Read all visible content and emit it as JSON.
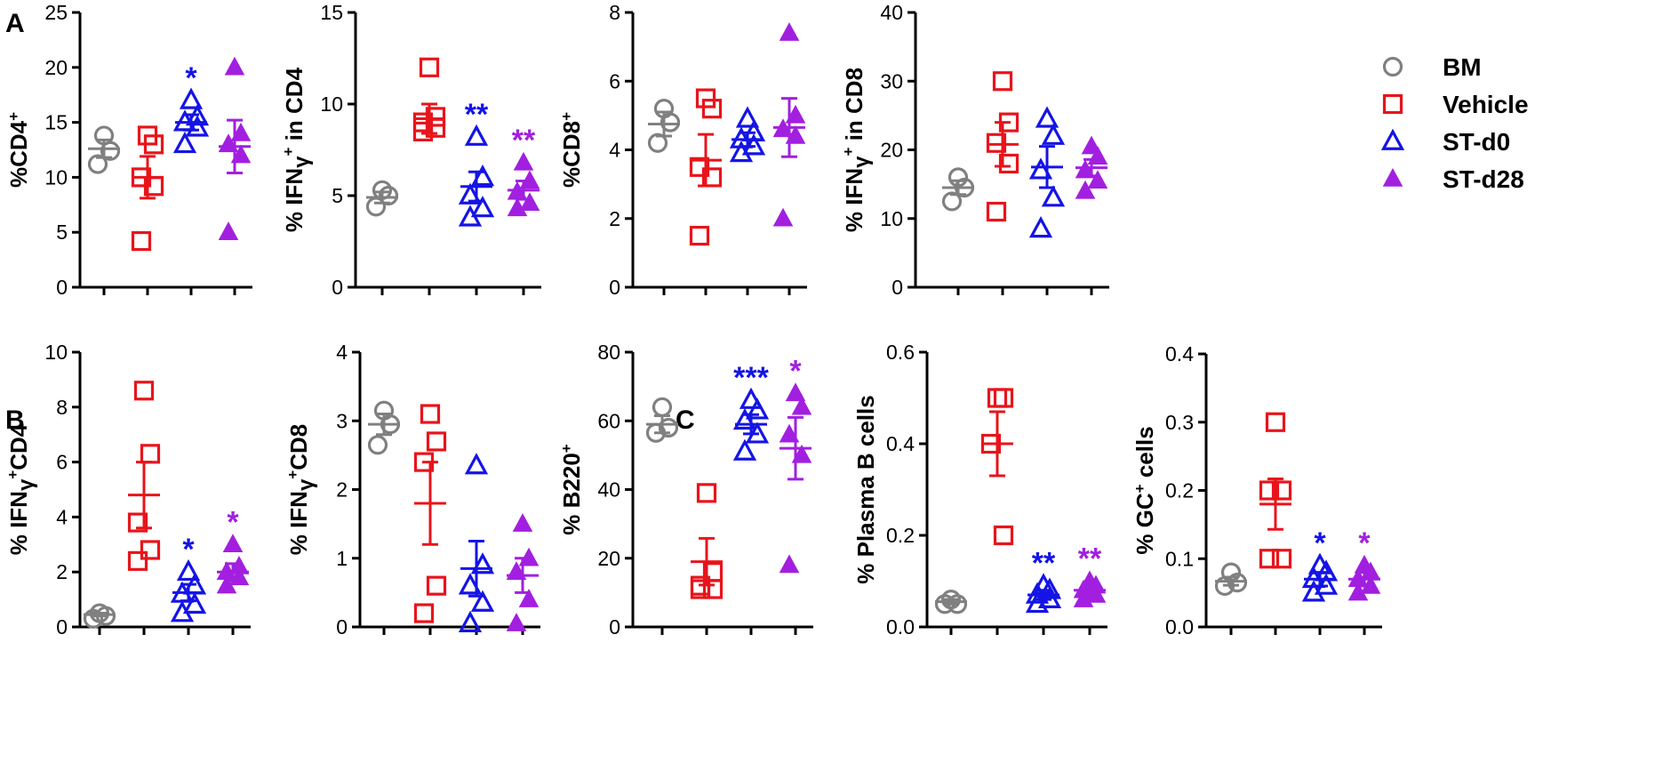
{
  "colors": {
    "BM": "#808080",
    "Vehicle": "#e8141b",
    "ST-d0": "#1414e6",
    "ST-d28": "#a21fe0",
    "axis": "#000000"
  },
  "panel_labels": [
    "A",
    "B",
    "C"
  ],
  "legend": {
    "items": [
      {
        "label": "BM",
        "group": "BM",
        "marker": "circle-open"
      },
      {
        "label": "Vehicle",
        "group": "Vehicle",
        "marker": "square-open"
      },
      {
        "label": "ST-d0",
        "group": "ST-d0",
        "marker": "triangle-open"
      },
      {
        "label": "ST-d28",
        "group": "ST-d28",
        "marker": "triangle-filled"
      }
    ]
  },
  "chart_data": [
    {
      "type": "scatter",
      "ylabel": "%CD4+",
      "ylim": [
        0,
        25
      ],
      "yticks": [
        "0",
        "5",
        "10",
        "15",
        "20",
        "25"
      ],
      "groups": [
        "BM",
        "Vehicle",
        "ST-d0",
        "ST-d28"
      ],
      "series": [
        {
          "name": "BM",
          "values": [
            13.8,
            12.4,
            11.2
          ],
          "mean": 12.6,
          "sem": 0.8,
          "sig": ""
        },
        {
          "name": "Vehicle",
          "values": [
            13.8,
            13.0,
            10.0,
            9.2,
            4.2
          ],
          "mean": 10.0,
          "sem": 1.9,
          "sig": ""
        },
        {
          "name": "ST-d0",
          "values": [
            17.0,
            15.5,
            15.0,
            14.5,
            13.0
          ],
          "mean": 15.0,
          "sem": 0.7,
          "sig": "*"
        },
        {
          "name": "ST-d28",
          "values": [
            20.0,
            14.0,
            13.0,
            12.0,
            5.0
          ],
          "mean": 12.8,
          "sem": 2.4,
          "sig": ""
        }
      ]
    },
    {
      "type": "scatter",
      "ylabel": "% IFNγ+ in CD4",
      "ylim": [
        0,
        15
      ],
      "yticks": [
        "0",
        "5",
        "10",
        "15"
      ],
      "groups": [
        "BM",
        "Vehicle",
        "ST-d0",
        "ST-d28"
      ],
      "series": [
        {
          "name": "BM",
          "values": [
            5.3,
            5.0,
            4.4
          ],
          "mean": 4.9,
          "sem": 0.3,
          "sig": ""
        },
        {
          "name": "Vehicle",
          "values": [
            12.0,
            9.3,
            9.0,
            8.7,
            8.5
          ],
          "mean": 9.2,
          "sem": 0.8,
          "sig": ""
        },
        {
          "name": "ST-d0",
          "values": [
            8.2,
            6.0,
            5.0,
            4.3,
            3.8
          ],
          "mean": 5.5,
          "sem": 0.8,
          "sig": "**"
        },
        {
          "name": "ST-d28",
          "values": [
            6.8,
            5.8,
            5.2,
            4.6,
            4.3
          ],
          "mean": 5.3,
          "sem": 0.5,
          "sig": "**"
        }
      ]
    },
    {
      "type": "scatter",
      "ylabel": "%CD8+",
      "ylim": [
        0,
        8
      ],
      "yticks": [
        "0",
        "2",
        "4",
        "6",
        "8"
      ],
      "groups": [
        "BM",
        "Vehicle",
        "ST-d0",
        "ST-d28"
      ],
      "series": [
        {
          "name": "BM",
          "values": [
            5.2,
            4.8,
            4.2
          ],
          "mean": 4.75,
          "sem": 0.35,
          "sig": ""
        },
        {
          "name": "Vehicle",
          "values": [
            5.5,
            5.2,
            3.5,
            3.2,
            1.5
          ],
          "mean": 3.7,
          "sem": 0.75,
          "sig": ""
        },
        {
          "name": "ST-d0",
          "values": [
            4.9,
            4.5,
            4.3,
            4.1,
            3.9
          ],
          "mean": 4.3,
          "sem": 0.2,
          "sig": ""
        },
        {
          "name": "ST-d28",
          "values": [
            7.4,
            5.0,
            4.6,
            4.4,
            2.0
          ],
          "mean": 4.65,
          "sem": 0.85,
          "sig": ""
        }
      ]
    },
    {
      "type": "scatter",
      "ylabel": "% IFNγ+ in CD8",
      "ylim": [
        0,
        40
      ],
      "yticks": [
        "0",
        "10",
        "20",
        "30",
        "40"
      ],
      "groups": [
        "BM",
        "Vehicle",
        "ST-d0",
        "ST-d28"
      ],
      "series": [
        {
          "name": "BM",
          "values": [
            16.0,
            14.5,
            12.5
          ],
          "mean": 14.5,
          "sem": 1.0,
          "sig": ""
        },
        {
          "name": "Vehicle",
          "values": [
            30.0,
            24.0,
            21.0,
            18.0,
            11.0
          ],
          "mean": 20.8,
          "sem": 3.2,
          "sig": ""
        },
        {
          "name": "ST-d0",
          "values": [
            24.5,
            22.0,
            17.0,
            13.0,
            8.5
          ],
          "mean": 17.5,
          "sem": 3.0,
          "sig": ""
        },
        {
          "name": "ST-d28",
          "values": [
            20.5,
            19.0,
            17.0,
            15.5,
            14.0
          ],
          "mean": 17.4,
          "sem": 1.2,
          "sig": ""
        }
      ]
    },
    {
      "type": "scatter",
      "ylabel": "% IFNγ+CD4",
      "ylim": [
        0,
        10
      ],
      "yticks": [
        "0",
        "2",
        "4",
        "6",
        "8",
        "10"
      ],
      "groups": [
        "BM",
        "Vehicle",
        "ST-d0",
        "ST-d28"
      ],
      "series": [
        {
          "name": "BM",
          "values": [
            0.5,
            0.4,
            0.3
          ],
          "mean": 0.45,
          "sem": 0.05,
          "sig": ""
        },
        {
          "name": "Vehicle",
          "values": [
            8.6,
            6.3,
            3.8,
            2.8,
            2.4
          ],
          "mean": 4.8,
          "sem": 1.2,
          "sig": ""
        },
        {
          "name": "ST-d0",
          "values": [
            2.0,
            1.5,
            1.2,
            0.8,
            0.5
          ],
          "mean": 1.25,
          "sem": 0.3,
          "sig": "*"
        },
        {
          "name": "ST-d28",
          "values": [
            3.0,
            2.2,
            2.0,
            1.8,
            1.5
          ],
          "mean": 2.0,
          "sem": 0.3,
          "sig": "*"
        }
      ]
    },
    {
      "type": "scatter",
      "ylabel": "% IFNγ+CD8",
      "ylim": [
        0,
        4
      ],
      "yticks": [
        "0",
        "1",
        "2",
        "3",
        "4"
      ],
      "groups": [
        "BM",
        "Vehicle",
        "ST-d0",
        "ST-d28"
      ],
      "series": [
        {
          "name": "BM",
          "values": [
            3.15,
            2.95,
            2.65
          ],
          "mean": 2.95,
          "sem": 0.15,
          "sig": ""
        },
        {
          "name": "Vehicle",
          "values": [
            3.1,
            2.7,
            2.4,
            0.6,
            0.2
          ],
          "mean": 1.8,
          "sem": 0.6,
          "sig": ""
        },
        {
          "name": "ST-d0",
          "values": [
            2.35,
            0.9,
            0.6,
            0.35,
            0.05
          ],
          "mean": 0.85,
          "sem": 0.4,
          "sig": ""
        },
        {
          "name": "ST-d28",
          "values": [
            1.5,
            1.0,
            0.8,
            0.4,
            0.05
          ],
          "mean": 0.75,
          "sem": 0.25,
          "sig": ""
        }
      ]
    },
    {
      "type": "scatter",
      "ylabel": "% B220+",
      "ylim": [
        0,
        80
      ],
      "yticks": [
        "0",
        "20",
        "40",
        "60",
        "80"
      ],
      "groups": [
        "BM",
        "Vehicle",
        "ST-d0",
        "ST-d28"
      ],
      "series": [
        {
          "name": "BM",
          "values": [
            64.0,
            58.0,
            56.5
          ],
          "mean": 59.0,
          "sem": 2.5,
          "sig": ""
        },
        {
          "name": "Vehicle",
          "values": [
            39.0,
            16.0,
            12.0,
            11.0,
            11.0
          ],
          "mean": 19.0,
          "sem": 6.8,
          "sig": ""
        },
        {
          "name": "ST-d0",
          "values": [
            66.0,
            63.0,
            60.0,
            56.0,
            51.0
          ],
          "mean": 59.0,
          "sem": 2.8,
          "sig": "***"
        },
        {
          "name": "ST-d28",
          "values": [
            68.0,
            64.0,
            56.0,
            50.0,
            18.0
          ],
          "mean": 52.0,
          "sem": 9.0,
          "sig": "*"
        }
      ]
    },
    {
      "type": "scatter",
      "ylabel": "% Plasma B cells",
      "ylim": [
        0,
        0.6
      ],
      "yticks": [
        "0.0",
        "0.2",
        "0.4",
        "0.6"
      ],
      "groups": [
        "BM",
        "Vehicle",
        "ST-d0",
        "ST-d28"
      ],
      "series": [
        {
          "name": "BM",
          "values": [
            0.06,
            0.05,
            0.05
          ],
          "mean": 0.055,
          "sem": 0.005,
          "sig": ""
        },
        {
          "name": "Vehicle",
          "values": [
            0.5,
            0.5,
            0.4,
            0.2
          ],
          "mean": 0.4,
          "sem": 0.07,
          "sig": ""
        },
        {
          "name": "ST-d0",
          "values": [
            0.09,
            0.08,
            0.07,
            0.06,
            0.05
          ],
          "mean": 0.07,
          "sem": 0.01,
          "sig": "**"
        },
        {
          "name": "ST-d28",
          "values": [
            0.1,
            0.09,
            0.08,
            0.07,
            0.06
          ],
          "mean": 0.08,
          "sem": 0.01,
          "sig": "**"
        }
      ]
    },
    {
      "type": "scatter",
      "ylabel": "% GC+ cells",
      "ylim": [
        0,
        0.4
      ],
      "yticks": [
        "0.0",
        "0.1",
        "0.2",
        "0.3",
        "0.4"
      ],
      "groups": [
        "BM",
        "Vehicle",
        "ST-d0",
        "ST-d28"
      ],
      "series": [
        {
          "name": "BM",
          "values": [
            0.08,
            0.065,
            0.06
          ],
          "mean": 0.067,
          "sem": 0.006,
          "sig": ""
        },
        {
          "name": "Vehicle",
          "values": [
            0.3,
            0.2,
            0.2,
            0.1,
            0.1
          ],
          "mean": 0.18,
          "sem": 0.037,
          "sig": ""
        },
        {
          "name": "ST-d0",
          "values": [
            0.09,
            0.08,
            0.07,
            0.06,
            0.05
          ],
          "mean": 0.07,
          "sem": 0.01,
          "sig": "*"
        },
        {
          "name": "ST-d28",
          "values": [
            0.09,
            0.08,
            0.07,
            0.06,
            0.05
          ],
          "mean": 0.07,
          "sem": 0.01,
          "sig": "*"
        }
      ]
    }
  ]
}
